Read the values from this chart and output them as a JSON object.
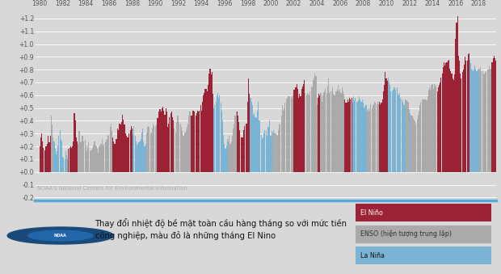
{
  "source_text": "NOAA's National Centers for Environmental Information",
  "legend_el_nino": "El Niño",
  "legend_enso": "ENSO (hiện tượng trung lập)",
  "legend_la_nina": "La Niña",
  "color_el_nino": "#9b2335",
  "color_enso": "#aaaaaa",
  "color_la_nina": "#7ab4d4",
  "bg_color": "#d8d8d8",
  "bottom_bg": "#ffffff",
  "yticks": [
    -0.2,
    -0.1,
    0.0,
    0.1,
    0.2,
    0.3,
    0.4,
    0.5,
    0.6,
    0.7,
    0.8,
    0.9,
    1.0,
    1.1,
    1.2
  ],
  "ytick_labels": [
    "-0.2",
    "-0.1",
    "+0.0",
    "+0.1",
    "+0.2",
    "+0.3",
    "+0.4",
    "+0.5",
    "+0.6",
    "+0.7",
    "+0.8",
    "+0.9",
    "+1.0",
    "+1.1",
    "+1.2"
  ],
  "caption_line1": "Thay đổi nhiệt độ bề mặt toàn cầu hàng tháng so với mức tiền",
  "caption_line2": "công nghiệp, màu đỏ là những tháng El Nino",
  "monthly_values": [
    0.2,
    0.27,
    0.3,
    0.24,
    0.19,
    0.17,
    0.2,
    0.2,
    0.22,
    0.28,
    0.23,
    0.28,
    0.44,
    0.37,
    0.27,
    0.24,
    0.18,
    0.14,
    0.16,
    0.21,
    0.28,
    0.33,
    0.26,
    0.24,
    0.12,
    0.11,
    0.1,
    0.16,
    0.13,
    0.1,
    0.18,
    0.19,
    0.2,
    0.19,
    0.2,
    0.24,
    0.46,
    0.4,
    0.27,
    0.24,
    0.22,
    0.32,
    0.23,
    0.24,
    0.28,
    0.28,
    0.24,
    0.25,
    0.21,
    0.16,
    0.2,
    0.23,
    0.17,
    0.17,
    0.17,
    0.19,
    0.21,
    0.24,
    0.21,
    0.2,
    0.18,
    0.15,
    0.2,
    0.22,
    0.22,
    0.26,
    0.21,
    0.22,
    0.23,
    0.25,
    0.26,
    0.28,
    0.29,
    0.35,
    0.38,
    0.32,
    0.27,
    0.24,
    0.22,
    0.26,
    0.26,
    0.34,
    0.33,
    0.38,
    0.37,
    0.39,
    0.45,
    0.41,
    0.37,
    0.3,
    0.28,
    0.27,
    0.27,
    0.3,
    0.33,
    0.36,
    0.34,
    0.29,
    0.36,
    0.28,
    0.24,
    0.21,
    0.22,
    0.23,
    0.24,
    0.26,
    0.31,
    0.34,
    0.24,
    0.2,
    0.22,
    0.3,
    0.35,
    0.36,
    0.35,
    0.31,
    0.3,
    0.34,
    0.38,
    0.36,
    0.36,
    0.37,
    0.42,
    0.42,
    0.47,
    0.49,
    0.47,
    0.5,
    0.51,
    0.48,
    0.45,
    0.5,
    0.47,
    0.35,
    0.38,
    0.43,
    0.46,
    0.47,
    0.43,
    0.4,
    0.34,
    0.31,
    0.39,
    0.44,
    0.44,
    0.39,
    0.38,
    0.35,
    0.32,
    0.28,
    0.28,
    0.31,
    0.33,
    0.35,
    0.38,
    0.44,
    0.47,
    0.44,
    0.44,
    0.48,
    0.48,
    0.47,
    0.44,
    0.46,
    0.48,
    0.47,
    0.48,
    0.52,
    0.48,
    0.55,
    0.6,
    0.62,
    0.65,
    0.65,
    0.63,
    0.68,
    0.77,
    0.81,
    0.76,
    0.78,
    0.61,
    0.5,
    0.52,
    0.55,
    0.6,
    0.62,
    0.58,
    0.6,
    0.54,
    0.48,
    0.4,
    0.29,
    0.22,
    0.18,
    0.21,
    0.26,
    0.24,
    0.28,
    0.22,
    0.24,
    0.28,
    0.34,
    0.37,
    0.44,
    0.47,
    0.47,
    0.44,
    0.39,
    0.33,
    0.27,
    0.27,
    0.27,
    0.33,
    0.36,
    0.38,
    0.38,
    0.55,
    0.73,
    0.61,
    0.58,
    0.55,
    0.52,
    0.45,
    0.46,
    0.43,
    0.42,
    0.48,
    0.55,
    0.4,
    0.4,
    0.29,
    0.26,
    0.27,
    0.3,
    0.33,
    0.32,
    0.28,
    0.35,
    0.35,
    0.4,
    0.28,
    0.32,
    0.3,
    0.33,
    0.31,
    0.3,
    0.29,
    0.28,
    0.33,
    0.37,
    0.38,
    0.44,
    0.52,
    0.48,
    0.5,
    0.54,
    0.57,
    0.58,
    0.59,
    0.59,
    0.59,
    0.59,
    0.58,
    0.6,
    0.64,
    0.64,
    0.66,
    0.69,
    0.65,
    0.58,
    0.61,
    0.59,
    0.65,
    0.67,
    0.69,
    0.72,
    0.62,
    0.6,
    0.62,
    0.61,
    0.6,
    0.63,
    0.67,
    0.66,
    0.72,
    0.73,
    0.77,
    0.75,
    0.53,
    0.58,
    0.61,
    0.6,
    0.62,
    0.55,
    0.6,
    0.62,
    0.63,
    0.65,
    0.62,
    0.67,
    0.73,
    0.62,
    0.63,
    0.63,
    0.66,
    0.61,
    0.6,
    0.6,
    0.63,
    0.64,
    0.68,
    0.63,
    0.65,
    0.62,
    0.66,
    0.63,
    0.61,
    0.57,
    0.54,
    0.54,
    0.57,
    0.55,
    0.58,
    0.57,
    0.58,
    0.54,
    0.59,
    0.56,
    0.58,
    0.55,
    0.55,
    0.56,
    0.59,
    0.57,
    0.55,
    0.57,
    0.54,
    0.5,
    0.51,
    0.52,
    0.48,
    0.5,
    0.48,
    0.5,
    0.53,
    0.5,
    0.52,
    0.53,
    0.55,
    0.54,
    0.53,
    0.55,
    0.53,
    0.55,
    0.53,
    0.54,
    0.57,
    0.63,
    0.68,
    0.78,
    0.73,
    0.71,
    0.74,
    0.7,
    0.68,
    0.63,
    0.63,
    0.64,
    0.66,
    0.66,
    0.64,
    0.66,
    0.61,
    0.6,
    0.62,
    0.58,
    0.57,
    0.55,
    0.53,
    0.52,
    0.57,
    0.56,
    0.55,
    0.55,
    0.49,
    0.46,
    0.44,
    0.44,
    0.42,
    0.4,
    0.4,
    0.38,
    0.41,
    0.44,
    0.47,
    0.52,
    0.55,
    0.57,
    0.57,
    0.57,
    0.57,
    0.57,
    0.56,
    0.59,
    0.64,
    0.66,
    0.64,
    0.68,
    0.69,
    0.65,
    0.69,
    0.67,
    0.68,
    0.63,
    0.66,
    0.68,
    0.7,
    0.74,
    0.77,
    0.82,
    0.86,
    0.83,
    0.85,
    0.86,
    0.87,
    0.88,
    0.81,
    0.79,
    0.77,
    0.73,
    0.72,
    0.76,
    1.04,
    1.17,
    1.22,
    0.91,
    0.87,
    0.77,
    0.73,
    0.78,
    0.8,
    0.84,
    0.9,
    0.87,
    0.87,
    0.92,
    0.93,
    0.88,
    0.85,
    0.8,
    0.79,
    0.8,
    0.83,
    0.81,
    0.79,
    0.8,
    0.81,
    0.8,
    0.82,
    0.79,
    0.79,
    0.77,
    0.76,
    0.78,
    0.79,
    0.8,
    0.8,
    0.83,
    0.8,
    0.81,
    0.86,
    0.89,
    0.91,
    0.89,
    0.87,
    0.86,
    0.88,
    0.89,
    0.92,
    0.95
  ],
  "enso_phases": [
    "E",
    "E",
    "E",
    "E",
    "E",
    "E",
    "E",
    "E",
    "E",
    "E",
    "E",
    "E",
    "N",
    "N",
    "N",
    "L",
    "L",
    "L",
    "L",
    "L",
    "L",
    "L",
    "L",
    "L",
    "L",
    "L",
    "L",
    "L",
    "N",
    "N",
    "E",
    "E",
    "E",
    "E",
    "E",
    "E",
    "E",
    "E",
    "E",
    "E",
    "N",
    "N",
    "N",
    "N",
    "N",
    "N",
    "N",
    "N",
    "N",
    "N",
    "N",
    "N",
    "N",
    "N",
    "N",
    "N",
    "N",
    "N",
    "N",
    "N",
    "N",
    "N",
    "N",
    "N",
    "N",
    "N",
    "N",
    "N",
    "N",
    "N",
    "N",
    "N",
    "N",
    "N",
    "N",
    "N",
    "E",
    "E",
    "E",
    "E",
    "E",
    "E",
    "E",
    "E",
    "E",
    "E",
    "E",
    "E",
    "E",
    "E",
    "E",
    "E",
    "E",
    "E",
    "E",
    "E",
    "E",
    "L",
    "L",
    "L",
    "L",
    "L",
    "L",
    "L",
    "L",
    "L",
    "L",
    "L",
    "L",
    "L",
    "L",
    "N",
    "N",
    "N",
    "N",
    "N",
    "N",
    "N",
    "N",
    "N",
    "N",
    "N",
    "E",
    "E",
    "E",
    "E",
    "E",
    "E",
    "E",
    "E",
    "E",
    "E",
    "E",
    "E",
    "E",
    "E",
    "E",
    "E",
    "E",
    "E",
    "N",
    "N",
    "N",
    "N",
    "N",
    "N",
    "N",
    "N",
    "N",
    "N",
    "N",
    "N",
    "N",
    "N",
    "N",
    "N",
    "N",
    "E",
    "E",
    "E",
    "E",
    "E",
    "E",
    "E",
    "E",
    "E",
    "E",
    "E",
    "E",
    "E",
    "E",
    "E",
    "E",
    "E",
    "E",
    "E",
    "E",
    "E",
    "E",
    "E",
    "E",
    "L",
    "L",
    "L",
    "L",
    "L",
    "L",
    "L",
    "L",
    "L",
    "L",
    "L",
    "L",
    "L",
    "L",
    "L",
    "N",
    "N",
    "N",
    "N",
    "N",
    "N",
    "N",
    "N",
    "N",
    "E",
    "E",
    "E",
    "E",
    "E",
    "E",
    "E",
    "E",
    "E",
    "E",
    "E",
    "E",
    "E",
    "E",
    "L",
    "L",
    "L",
    "L",
    "L",
    "L",
    "L",
    "L",
    "L",
    "L",
    "L",
    "L",
    "L",
    "L",
    "L",
    "L",
    "L",
    "L",
    "L",
    "L",
    "L",
    "L",
    "L",
    "N",
    "N",
    "N",
    "N",
    "N",
    "N",
    "N",
    "N",
    "N",
    "N",
    "N",
    "N",
    "N",
    "N",
    "N",
    "N",
    "N",
    "N",
    "N",
    "N",
    "N",
    "N",
    "E",
    "E",
    "E",
    "E",
    "E",
    "E",
    "E",
    "E",
    "E",
    "E",
    "E",
    "E",
    "N",
    "N",
    "N",
    "N",
    "N",
    "N",
    "N",
    "N",
    "N",
    "N",
    "N",
    "N",
    "N",
    "E",
    "E",
    "E",
    "N",
    "N",
    "N",
    "N",
    "N",
    "N",
    "N",
    "N",
    "N",
    "N",
    "N",
    "N",
    "N",
    "N",
    "N",
    "N",
    "N",
    "N",
    "N",
    "N",
    "N",
    "N",
    "N",
    "N",
    "N",
    "E",
    "E",
    "E",
    "E",
    "E",
    "E",
    "E",
    "E",
    "L",
    "L",
    "L",
    "L",
    "L",
    "L",
    "L",
    "L",
    "L",
    "L",
    "L",
    "L",
    "L",
    "L",
    "L",
    "N",
    "N",
    "N",
    "N",
    "N",
    "N",
    "N",
    "N",
    "N",
    "N",
    "N",
    "N",
    "N",
    "E",
    "E",
    "E",
    "E",
    "E",
    "E",
    "E",
    "E",
    "E",
    "L",
    "L",
    "L",
    "L",
    "L",
    "L",
    "L",
    "L",
    "L",
    "L",
    "L",
    "L",
    "L",
    "L",
    "L",
    "L",
    "L",
    "L",
    "L",
    "N",
    "N",
    "N",
    "L",
    "N",
    "N",
    "N",
    "N",
    "N",
    "N",
    "N",
    "N",
    "N",
    "N",
    "N",
    "N",
    "N",
    "N",
    "N",
    "N",
    "N",
    "N",
    "N",
    "N",
    "N",
    "N",
    "N",
    "N",
    "N",
    "N",
    "N",
    "N",
    "E",
    "E",
    "E",
    "E",
    "E",
    "E",
    "E",
    "E",
    "E",
    "E",
    "E",
    "E",
    "E",
    "E",
    "E",
    "E",
    "E",
    "E",
    "E",
    "E",
    "E",
    "E",
    "E",
    "E",
    "E",
    "E",
    "E",
    "E",
    "E",
    "E",
    "E",
    "E",
    "E",
    "E",
    "L",
    "L",
    "L",
    "L",
    "L",
    "L",
    "L",
    "L",
    "L",
    "L",
    "N",
    "N",
    "N",
    "N",
    "N",
    "N",
    "N",
    "N",
    "N",
    "N",
    "N",
    "N",
    "N",
    "E",
    "E",
    "E",
    "E",
    "E",
    "E",
    "E",
    "E",
    "E",
    "E"
  ]
}
